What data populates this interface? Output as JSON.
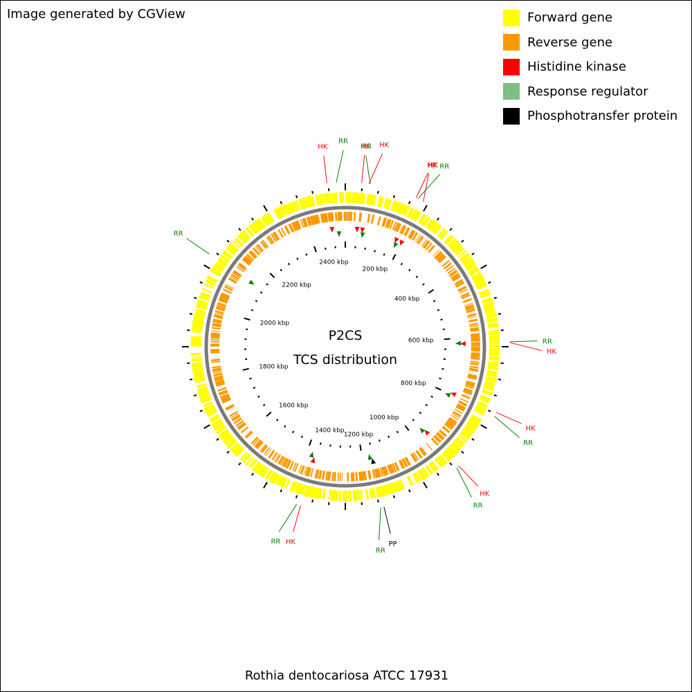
{
  "credit": "Image generated by CGView",
  "caption": "Rothia dentocariosa ATCC 17931",
  "center": {
    "line1": "P2CS",
    "line2": "TCS distribution"
  },
  "legend": [
    {
      "label": "Forward gene",
      "color": "#ffff00"
    },
    {
      "label": "Reverse gene",
      "color": "#ff9900"
    },
    {
      "label": "Histidine kinase",
      "color": "#ff0000"
    },
    {
      "label": "Response regulator",
      "color": "#7fbf7f"
    },
    {
      "label": "Phosphotransfer protein",
      "color": "#000000"
    }
  ],
  "genome_length_kbp": 2520,
  "ruler_labels": [
    {
      "label": "200 kbp",
      "kbp": 200
    },
    {
      "label": "400 kbp",
      "kbp": 400
    },
    {
      "label": "600 kbp",
      "kbp": 600
    },
    {
      "label": "800 kbp",
      "kbp": 800
    },
    {
      "label": "1000 kbp",
      "kbp": 1000
    },
    {
      "label": "1200 kbp",
      "kbp": 1200
    },
    {
      "label": "1400 kbp",
      "kbp": 1400
    },
    {
      "label": "1600 kbp",
      "kbp": 1600
    },
    {
      "label": "1800 kbp",
      "kbp": 1800
    },
    {
      "label": "2000 kbp",
      "kbp": 2000
    },
    {
      "label": "2200 kbp",
      "kbp": 2200
    },
    {
      "label": "2400 kbp",
      "kbp": 2400
    }
  ],
  "features": [
    {
      "label": "HK",
      "type": "Histidine kinase",
      "kbp": 2475
    },
    {
      "label": "RR",
      "type": "Response regulator",
      "kbp": 2498
    },
    {
      "label": "HK",
      "type": "Histidine kinase",
      "kbp": 40
    },
    {
      "label": "HK",
      "type": "Histidine kinase",
      "kbp": 58
    },
    {
      "label": "RR",
      "type": "Response regulator",
      "kbp": 61
    },
    {
      "label": "HK",
      "type": "Histidine kinase",
      "kbp": 178
    },
    {
      "label": "RR",
      "type": "Response regulator",
      "kbp": 183
    },
    {
      "label": "HK",
      "type": "Histidine kinase",
      "kbp": 198
    },
    {
      "label": "RR",
      "type": "Response regulator",
      "kbp": 618
    },
    {
      "label": "HK",
      "type": "Histidine kinase",
      "kbp": 620
    },
    {
      "label": "HK",
      "type": "Histidine kinase",
      "kbp": 795
    },
    {
      "label": "RR",
      "type": "Response regulator",
      "kbp": 805
    },
    {
      "label": "HK",
      "type": "Histidine kinase",
      "kbp": 955
    },
    {
      "label": "RR",
      "type": "Response regulator",
      "kbp": 962
    },
    {
      "label": "PP",
      "type": "Phosphotransfer protein",
      "kbp": 1165
    },
    {
      "label": "RR",
      "type": "Response regulator",
      "kbp": 1173
    },
    {
      "label": "HK",
      "type": "Histidine kinase",
      "kbp": 1370
    },
    {
      "label": "RR",
      "type": "Response regulator",
      "kbp": 1380
    },
    {
      "label": "RR",
      "type": "Response regulator",
      "kbp": 2130
    }
  ]
}
